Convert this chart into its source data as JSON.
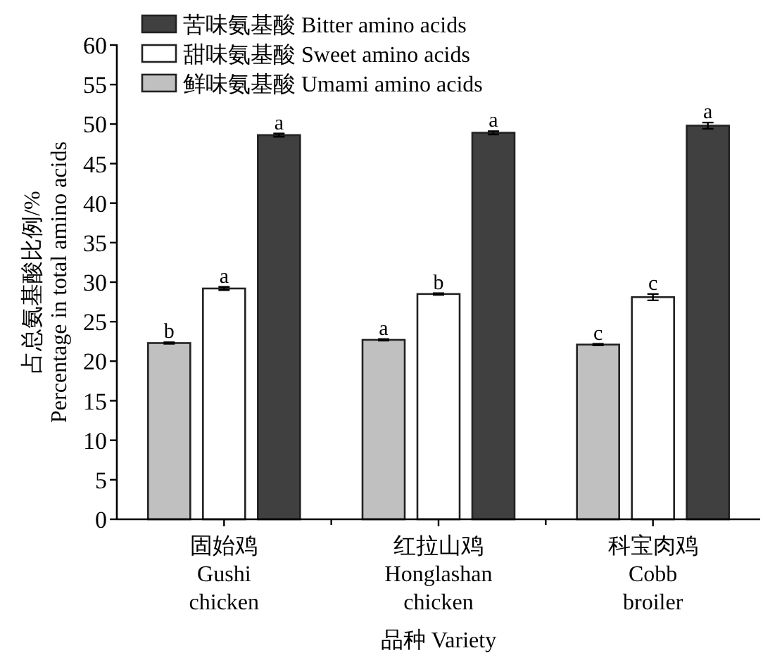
{
  "chart_data": {
    "type": "bar",
    "xlabel": "品种 Variety",
    "ylabel": "占总氨基酸比例/%\nPercentage in  total amino acids",
    "categories": [
      "固始鸡\nGushi\nchicken",
      "红拉山鸡\nHonglashan\nchicken",
      "科宝肉鸡\nCobb\nbroiler"
    ],
    "series": [
      {
        "name": "鲜味氨基酸 Umami amino acids",
        "color": "#c0c0c0",
        "values": [
          22.3,
          22.7,
          22.1
        ],
        "errors": [
          0.1,
          0.1,
          0.1
        ],
        "value_labels": [
          "b",
          "a",
          "c"
        ]
      },
      {
        "name": "甜味氨基酸 Sweet amino acids",
        "color": "#ffffff",
        "values": [
          29.2,
          28.5,
          28.1
        ],
        "errors": [
          0.2,
          0.1,
          0.4
        ],
        "value_labels": [
          "a",
          "b",
          "c"
        ]
      },
      {
        "name": "苦味氨基酸 Bitter amino acids",
        "color": "#404040",
        "values": [
          48.6,
          48.9,
          49.8
        ],
        "errors": [
          0.2,
          0.2,
          0.4
        ],
        "value_labels": [
          "a",
          "a",
          "a"
        ]
      }
    ],
    "ylim": [
      0,
      60
    ],
    "yticks": [
      0,
      5,
      10,
      15,
      20,
      25,
      30,
      35,
      40,
      45,
      50,
      55,
      60
    ],
    "legend": "top left"
  }
}
